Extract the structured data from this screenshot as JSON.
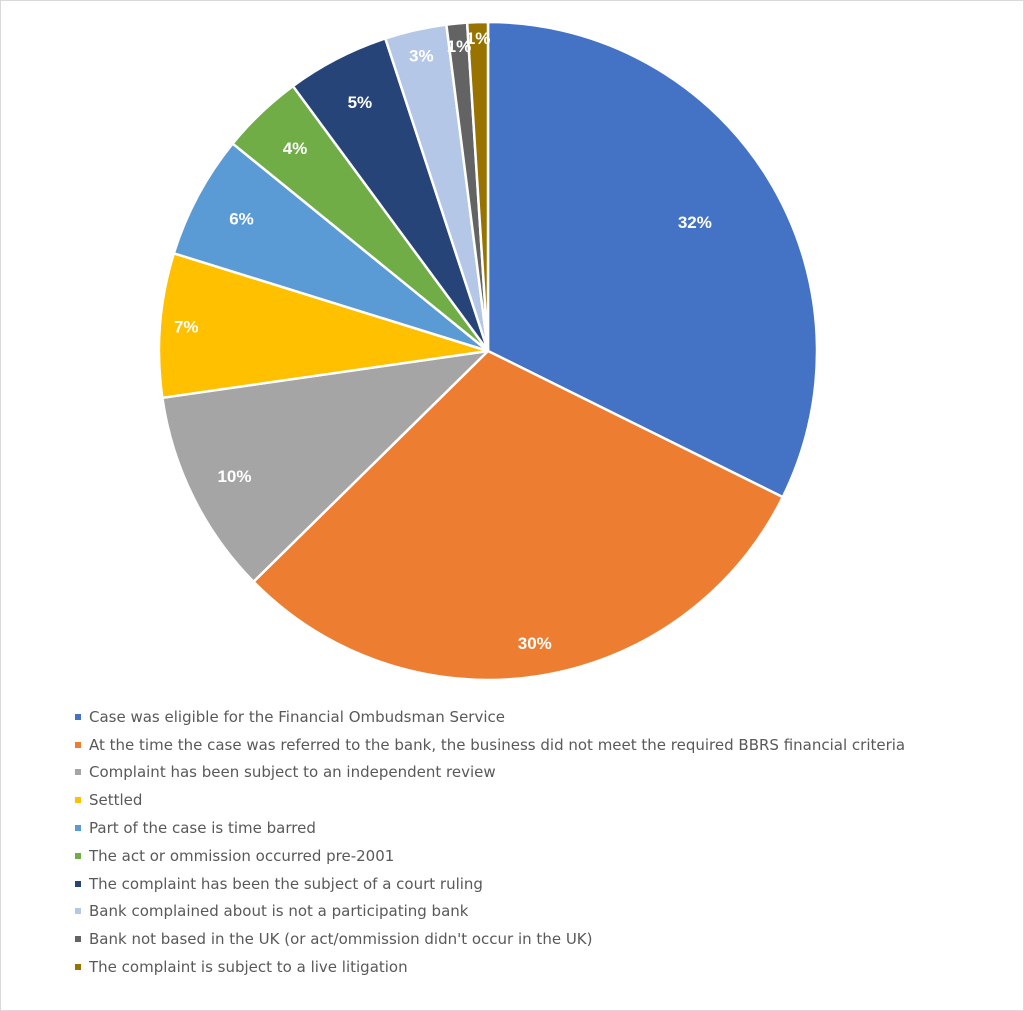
{
  "chart_data": {
    "type": "pie",
    "title": "",
    "legend_position": "bottom",
    "start_angle_deg": 0,
    "direction": "clockwise",
    "slices": [
      {
        "label": "Case was eligible for the Financial Ombudsman Service",
        "value": 32,
        "value_label": "32%",
        "color": "#4472C4"
      },
      {
        "label": "At the time the case was referred to the bank, the business did not meet the required BBRS financial criteria",
        "value": 30,
        "value_label": "30%",
        "color": "#ED7D31"
      },
      {
        "label": "Complaint has been subject to an independent review",
        "value": 10,
        "value_label": "10%",
        "color": "#A5A5A5"
      },
      {
        "label": "Settled",
        "value": 7,
        "value_label": "7%",
        "color": "#FFC000"
      },
      {
        "label": "Part of the case is time barred",
        "value": 6,
        "value_label": "6%",
        "color": "#5B9BD5"
      },
      {
        "label": "The act or ommission occurred pre-2001",
        "value": 4,
        "value_label": "4%",
        "color": "#70AD47"
      },
      {
        "label": "The complaint has been the subject of a court ruling",
        "value": 5,
        "value_label": "5%",
        "color": "#264478"
      },
      {
        "label": "Bank complained about is not a participating bank",
        "value": 3,
        "value_label": "3%",
        "color": "#B4C7E7"
      },
      {
        "label": "Bank not based in the UK (or act/ommission didn't occur in the UK)",
        "value": 1,
        "value_label": "1%",
        "color": "#636363"
      },
      {
        "label": "The complaint is subject to a live litigation",
        "value": 1,
        "value_label": "1%",
        "color": "#997300"
      }
    ]
  }
}
